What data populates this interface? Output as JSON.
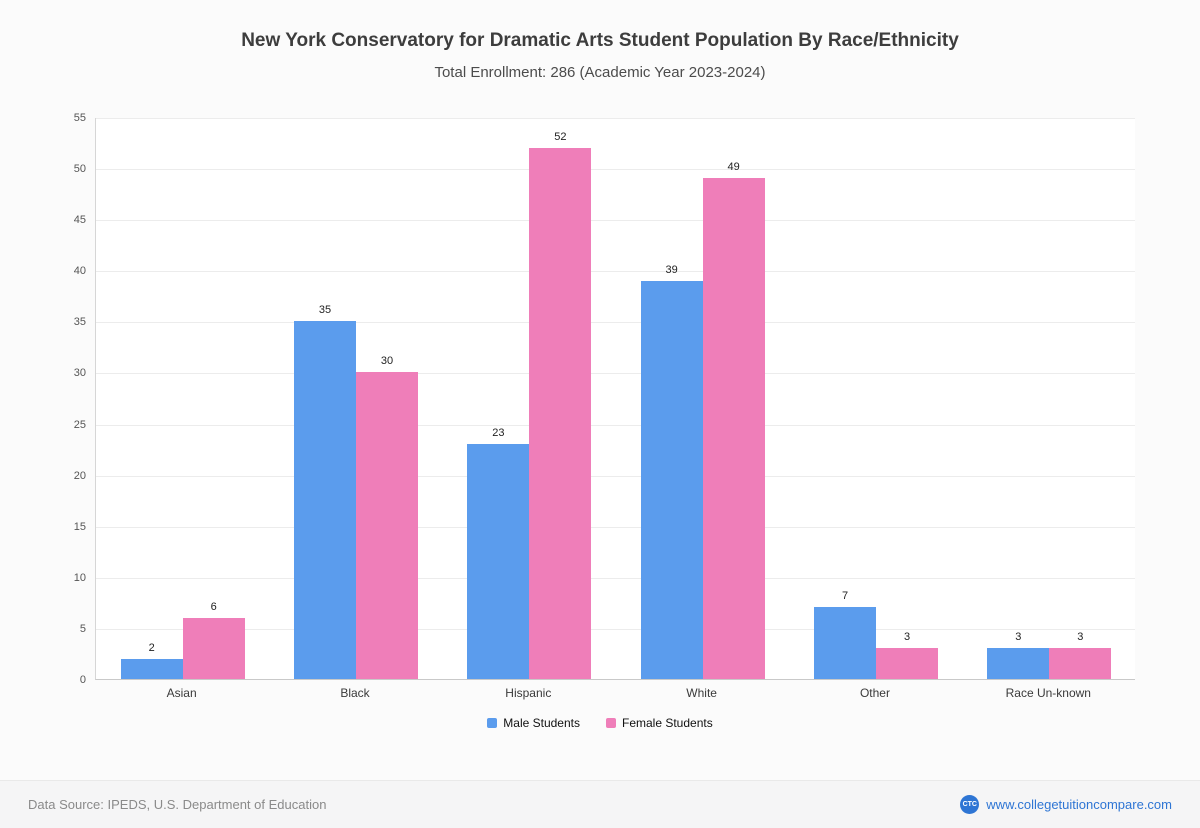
{
  "page": {
    "title": "New York Conservatory for Dramatic Arts Student Population By Race/Ethnicity",
    "subtitle": "Total Enrollment: 286 (Academic Year 2023-2024)"
  },
  "chart_data": {
    "type": "bar",
    "title": "New York Conservatory for Dramatic Arts Student Population By Race/Ethnicity",
    "subtitle": "Total Enrollment: 286 (Academic Year 2023-2024)",
    "categories": [
      "Asian",
      "Black",
      "Hispanic",
      "White",
      "Other",
      "Race Un-known"
    ],
    "series": [
      {
        "name": "Male Students",
        "color": "#5b9ced",
        "values": [
          2,
          35,
          23,
          39,
          7,
          3
        ]
      },
      {
        "name": "Female Students",
        "color": "#ef7eb9",
        "values": [
          6,
          30,
          52,
          49,
          3,
          3
        ]
      }
    ],
    "xlabel": "",
    "ylabel": "",
    "ylim": [
      0,
      55
    ],
    "ytick_step": 5,
    "grid": true,
    "legend_position": "bottom"
  },
  "footer": {
    "source": "Data Source: IPEDS, U.S. Department of Education",
    "website": "www.collegetuitioncompare.com",
    "logo_text": "CTC"
  }
}
